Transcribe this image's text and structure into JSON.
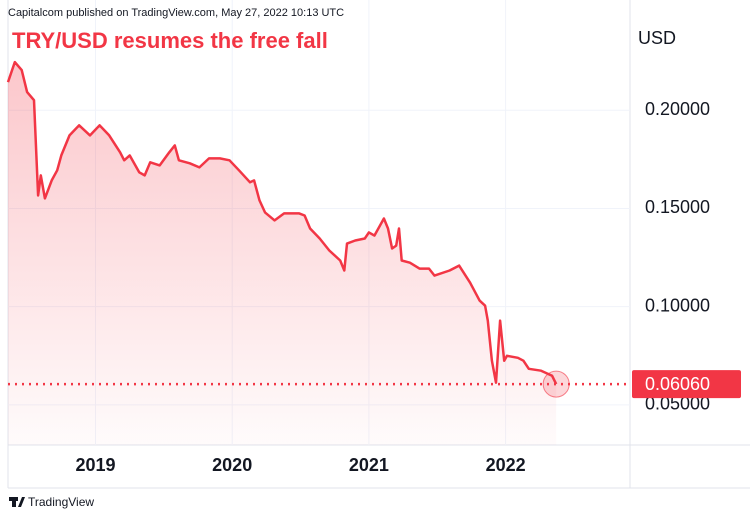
{
  "header": "Capitalcom published on TradingView.com, May 27, 2022 10:13 UTC",
  "footer": "TradingView",
  "chart_data": {
    "type": "area",
    "title": "TRY/USD resumes the free fall",
    "y_label": "USD",
    "color": "#f23645",
    "x": [
      2018.36,
      2018.41,
      2018.46,
      2018.5,
      2018.55,
      2018.58,
      2018.6,
      2018.63,
      2018.68,
      2018.72,
      2018.75,
      2018.81,
      2018.88,
      2018.96,
      2019.03,
      2019.1,
      2019.18,
      2019.21,
      2019.25,
      2019.32,
      2019.36,
      2019.4,
      2019.47,
      2019.54,
      2019.58,
      2019.61,
      2019.69,
      2019.76,
      2019.83,
      2019.91,
      2019.98,
      2020.05,
      2020.13,
      2020.16,
      2020.2,
      2020.24,
      2020.31,
      2020.38,
      2020.49,
      2020.53,
      2020.57,
      2020.64,
      2020.71,
      2020.79,
      2020.82,
      2020.84,
      2020.9,
      2020.97,
      2021.0,
      2021.04,
      2021.11,
      2021.14,
      2021.17,
      2021.2,
      2021.22,
      2021.24,
      2021.3,
      2021.37,
      2021.44,
      2021.48,
      2021.59,
      2021.66,
      2021.74,
      2021.81,
      2021.85,
      2021.87,
      2021.9,
      2021.93,
      2021.96,
      2021.99,
      2022.01,
      2022.09,
      2022.13,
      2022.17,
      2022.26,
      2022.34,
      2022.37
    ],
    "values": [
      0.2143,
      0.2245,
      0.2204,
      0.2092,
      0.2051,
      0.1566,
      0.1668,
      0.1551,
      0.1643,
      0.1694,
      0.177,
      0.1872,
      0.1923,
      0.1872,
      0.1923,
      0.1872,
      0.1786,
      0.1745,
      0.177,
      0.1684,
      0.1668,
      0.1735,
      0.1719,
      0.1786,
      0.1821,
      0.1745,
      0.173,
      0.1709,
      0.1755,
      0.1755,
      0.1745,
      0.1694,
      0.1633,
      0.1643,
      0.1541,
      0.148,
      0.1439,
      0.1475,
      0.1475,
      0.1464,
      0.1398,
      0.1347,
      0.1286,
      0.1235,
      0.1184,
      0.1321,
      0.1337,
      0.1347,
      0.1378,
      0.1362,
      0.1449,
      0.1398,
      0.1296,
      0.1311,
      0.1398,
      0.1235,
      0.1224,
      0.1194,
      0.1194,
      0.1158,
      0.1184,
      0.1209,
      0.1122,
      0.1031,
      0.1005,
      0.0929,
      0.0725,
      0.0613,
      0.0929,
      0.0725,
      0.075,
      0.074,
      0.0725,
      0.0684,
      0.0674,
      0.0648,
      0.0606
    ],
    "xlim": [
      2018.36,
      2022.91
    ],
    "xticks": [
      2019,
      2020,
      2021,
      2022
    ],
    "ylim": [
      0.0296,
      0.2561
    ],
    "yticks": [
      {
        "value": 0.05,
        "label": "0.05000"
      },
      {
        "value": 0.1,
        "label": "0.10000"
      },
      {
        "value": 0.15,
        "label": "0.15000"
      },
      {
        "value": 0.2,
        "label": "0.20000"
      }
    ],
    "current_price": {
      "value": 0.0606,
      "label": "0.06060"
    },
    "grid": true
  }
}
